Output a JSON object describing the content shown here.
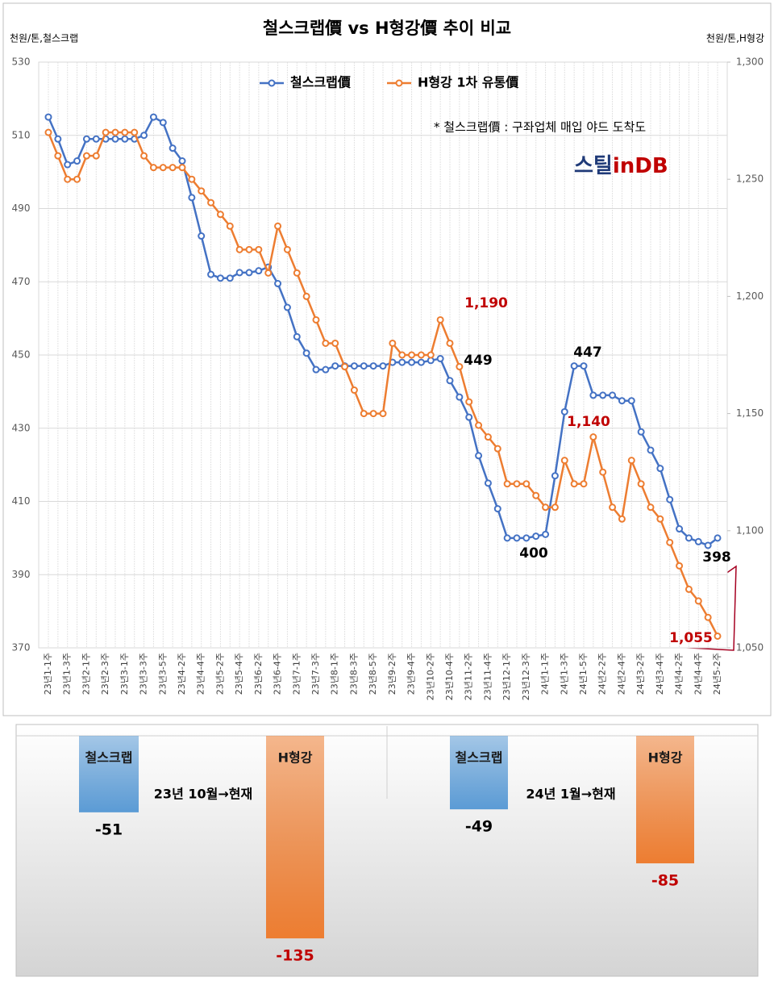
{
  "chart_data": [
    {
      "type": "line",
      "title": "철스크랩價 vs H형강價 추이 비교",
      "y_label": "천원/톤,철스크랩",
      "y2_label": "천원/톤,H형강",
      "note": "* 철스크랩價 : 구좌업체 매입 야드 도착도",
      "logo": [
        "스틸",
        "in",
        "DB"
      ],
      "categories": [
        "23년1-1주",
        null,
        "23년1-3주",
        null,
        "23년2-1주",
        null,
        "23년2-3주",
        null,
        "23년3-1주",
        null,
        "23년3-3주",
        null,
        "23년3-5주",
        null,
        "23년4-2주",
        null,
        "23년4-4주",
        null,
        "23년5-2주",
        null,
        "23년5-4주",
        null,
        "23년6-2주",
        null,
        "23년6-4주",
        null,
        "23년7-1주",
        null,
        "23년7-3주",
        null,
        "23년8-1주",
        null,
        "23년8-3주",
        null,
        "23년8-5주",
        null,
        "23년9-2주",
        null,
        "23년9-4주",
        null,
        "23년10-2주",
        null,
        "23년10-4주",
        null,
        "23년11-2주",
        null,
        "23년11-4주",
        null,
        "23년12-1주",
        null,
        "23년12-3주",
        null,
        "24년1-1주",
        null,
        "24년1-3주",
        null,
        "24년1-5주",
        null,
        "24년2-2주",
        null,
        "24년2-4주",
        null,
        "24년3-2주",
        null,
        "24년3-4주",
        null,
        "24년4-2주",
        null,
        "24년4-4주",
        null,
        "24년5-2주"
      ],
      "series": [
        {
          "name": "철스크랩價",
          "color": "#4472c4",
          "values": [
            515,
            509,
            502,
            503,
            509,
            509,
            509,
            509,
            509,
            509,
            510,
            515,
            513.5,
            506.5,
            503,
            493,
            482.5,
            472,
            471,
            471,
            472.5,
            472.5,
            473,
            474,
            469.5,
            463,
            455,
            450.5,
            446,
            446,
            447,
            447,
            447,
            447,
            447,
            447,
            448,
            448,
            448,
            448,
            448.5,
            449,
            443,
            438.5,
            433,
            422.5,
            415,
            408,
            400,
            400,
            400,
            400.5,
            401,
            417,
            434.5,
            447,
            447,
            439,
            439,
            439,
            437.5,
            437.5,
            429,
            424,
            419,
            410.5,
            402.5,
            400,
            399,
            398,
            400
          ]
        },
        {
          "name": "H형강 1차 유통價",
          "color": "#ed7d31",
          "axis": "y2",
          "values": [
            1270,
            1260,
            1250,
            1250,
            1260,
            1260,
            1270,
            1270,
            1270,
            1270,
            1260,
            1255,
            1255,
            1255,
            1255,
            1250,
            1245,
            1240,
            1235,
            1230,
            1220,
            1220,
            1220,
            1210,
            1230,
            1220,
            1210,
            1200,
            1190,
            1180,
            1180,
            1170,
            1160,
            1150,
            1150,
            1150,
            1180,
            1175,
            1175,
            1175,
            1175,
            1190,
            1180,
            1170,
            1155,
            1145,
            1140,
            1135,
            1120,
            1120,
            1120,
            1115,
            1110,
            1110,
            1130,
            1120,
            1120,
            1140,
            1125,
            1110,
            1105,
            1130,
            1120,
            1110,
            1105,
            1095,
            1085,
            1075,
            1070,
            1063,
            1055
          ]
        }
      ],
      "annotations": [
        {
          "text": "1,190",
          "color": "#c00000"
        },
        {
          "text": "449",
          "color": "#000000"
        },
        {
          "text": "447",
          "color": "#000000"
        },
        {
          "text": "1,140",
          "color": "#c00000"
        },
        {
          "text": "400",
          "color": "#000000"
        },
        {
          "text": "398",
          "color": "#000000"
        },
        {
          "text": "1,055",
          "color": "#c00000"
        }
      ],
      "ylim": [
        370,
        530
      ],
      "yticks": [
        370,
        390,
        410,
        430,
        450,
        470,
        490,
        510,
        530
      ],
      "y2lim": [
        1050,
        1300
      ],
      "y2ticks": [
        {
          "value": 1050,
          "label": "1,050"
        },
        {
          "value": 1100,
          "label": "1,100"
        },
        {
          "value": 1150,
          "label": "1,150"
        },
        {
          "value": 1200,
          "label": "1,200"
        },
        {
          "value": 1250,
          "label": "1,250"
        },
        {
          "value": 1300,
          "label": "1,300"
        }
      ],
      "grid": true
    },
    {
      "type": "bar",
      "subtitle": "23년 10월→현재",
      "categories": [
        "철스크랩",
        "H형강"
      ],
      "values": [
        -51,
        -135
      ],
      "colors": [
        "#5b9bd5",
        "#ed7d31"
      ],
      "label_colors": [
        "#000000",
        "#c00000"
      ]
    },
    {
      "type": "bar",
      "subtitle": "24년 1월→현재",
      "categories": [
        "철스크랩",
        "H형강"
      ],
      "values": [
        -49,
        -85
      ],
      "colors": [
        "#5b9bd5",
        "#ed7d31"
      ],
      "label_colors": [
        "#000000",
        "#c00000"
      ]
    }
  ]
}
